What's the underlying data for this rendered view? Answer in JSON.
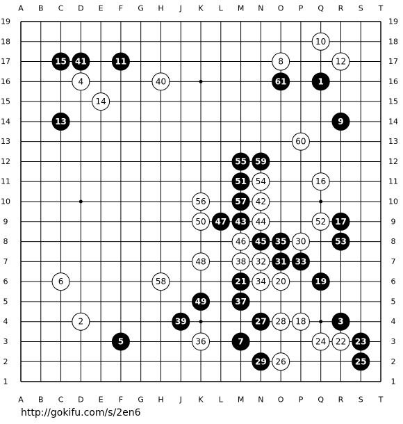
{
  "board": {
    "columns": [
      "A",
      "B",
      "C",
      "D",
      "E",
      "F",
      "G",
      "H",
      "J",
      "K",
      "L",
      "M",
      "N",
      "O",
      "P",
      "Q",
      "R",
      "S",
      "T"
    ],
    "rows": [
      19,
      18,
      17,
      16,
      15,
      14,
      13,
      12,
      11,
      10,
      9,
      8,
      7,
      6,
      5,
      4,
      3,
      2,
      1
    ],
    "stones": [
      {
        "color": "black",
        "col": "C",
        "row": 17,
        "number": 15
      },
      {
        "color": "black",
        "col": "D",
        "row": 17,
        "number": 41
      },
      {
        "color": "black",
        "col": "F",
        "row": 17,
        "number": 11
      },
      {
        "color": "black",
        "col": "O",
        "row": 16,
        "number": 61
      },
      {
        "color": "black",
        "col": "Q",
        "row": 16,
        "number": 1
      },
      {
        "color": "black",
        "col": "C",
        "row": 14,
        "number": 13
      },
      {
        "color": "black",
        "col": "R",
        "row": 14,
        "number": 9
      },
      {
        "color": "black",
        "col": "M",
        "row": 12,
        "number": 55
      },
      {
        "color": "black",
        "col": "N",
        "row": 12,
        "number": 59
      },
      {
        "color": "black",
        "col": "M",
        "row": 11,
        "number": 51
      },
      {
        "color": "black",
        "col": "M",
        "row": 10,
        "number": 57
      },
      {
        "color": "black",
        "col": "L",
        "row": 9,
        "number": 47
      },
      {
        "color": "black",
        "col": "M",
        "row": 9,
        "number": 43
      },
      {
        "color": "black",
        "col": "R",
        "row": 9,
        "number": 17
      },
      {
        "color": "black",
        "col": "N",
        "row": 8,
        "number": 45
      },
      {
        "color": "black",
        "col": "O",
        "row": 8,
        "number": 35
      },
      {
        "color": "black",
        "col": "R",
        "row": 8,
        "number": 53
      },
      {
        "color": "black",
        "col": "O",
        "row": 7,
        "number": 31
      },
      {
        "color": "black",
        "col": "P",
        "row": 7,
        "number": 33
      },
      {
        "color": "black",
        "col": "M",
        "row": 6,
        "number": 21
      },
      {
        "color": "black",
        "col": "Q",
        "row": 6,
        "number": 19
      },
      {
        "color": "black",
        "col": "K",
        "row": 5,
        "number": 49
      },
      {
        "color": "black",
        "col": "M",
        "row": 5,
        "number": 37
      },
      {
        "color": "black",
        "col": "J",
        "row": 4,
        "number": 39
      },
      {
        "color": "black",
        "col": "N",
        "row": 4,
        "number": 27
      },
      {
        "color": "black",
        "col": "R",
        "row": 4,
        "number": 3
      },
      {
        "color": "black",
        "col": "F",
        "row": 3,
        "number": 5
      },
      {
        "color": "black",
        "col": "M",
        "row": 3,
        "number": 7
      },
      {
        "color": "black",
        "col": "S",
        "row": 3,
        "number": 23
      },
      {
        "color": "black",
        "col": "N",
        "row": 2,
        "number": 29
      },
      {
        "color": "black",
        "col": "S",
        "row": 2,
        "number": 25
      },
      {
        "color": "white",
        "col": "Q",
        "row": 18,
        "number": 10
      },
      {
        "color": "white",
        "col": "O",
        "row": 17,
        "number": 8
      },
      {
        "color": "white",
        "col": "R",
        "row": 17,
        "number": 12
      },
      {
        "color": "white",
        "col": "D",
        "row": 16,
        "number": 4
      },
      {
        "color": "white",
        "col": "H",
        "row": 16,
        "number": 40
      },
      {
        "color": "white",
        "col": "E",
        "row": 15,
        "number": 14
      },
      {
        "color": "white",
        "col": "P",
        "row": 13,
        "number": 60
      },
      {
        "color": "white",
        "col": "N",
        "row": 11,
        "number": 54
      },
      {
        "color": "white",
        "col": "Q",
        "row": 11,
        "number": 16
      },
      {
        "color": "white",
        "col": "K",
        "row": 10,
        "number": 56
      },
      {
        "color": "white",
        "col": "N",
        "row": 10,
        "number": 42
      },
      {
        "color": "white",
        "col": "K",
        "row": 9,
        "number": 50
      },
      {
        "color": "white",
        "col": "N",
        "row": 9,
        "number": 44
      },
      {
        "color": "white",
        "col": "Q",
        "row": 9,
        "number": 52
      },
      {
        "color": "white",
        "col": "M",
        "row": 8,
        "number": 46
      },
      {
        "color": "white",
        "col": "P",
        "row": 8,
        "number": 30
      },
      {
        "color": "white",
        "col": "K",
        "row": 7,
        "number": 48
      },
      {
        "color": "white",
        "col": "M",
        "row": 7,
        "number": 38
      },
      {
        "color": "white",
        "col": "N",
        "row": 7,
        "number": 32
      },
      {
        "color": "white",
        "col": "C",
        "row": 6,
        "number": 6
      },
      {
        "color": "white",
        "col": "H",
        "row": 6,
        "number": 58
      },
      {
        "color": "white",
        "col": "N",
        "row": 6,
        "number": 34
      },
      {
        "color": "white",
        "col": "O",
        "row": 6,
        "number": 20
      },
      {
        "color": "white",
        "col": "D",
        "row": 4,
        "number": 2
      },
      {
        "color": "white",
        "col": "O",
        "row": 4,
        "number": 28
      },
      {
        "color": "white",
        "col": "P",
        "row": 4,
        "number": 18
      },
      {
        "color": "white",
        "col": "K",
        "row": 3,
        "number": 36
      },
      {
        "color": "white",
        "col": "Q",
        "row": 3,
        "number": 24
      },
      {
        "color": "white",
        "col": "R",
        "row": 3,
        "number": 22
      },
      {
        "color": "white",
        "col": "O",
        "row": 2,
        "number": 26
      }
    ]
  },
  "footer": "http://gokifu.com/s/2en6"
}
